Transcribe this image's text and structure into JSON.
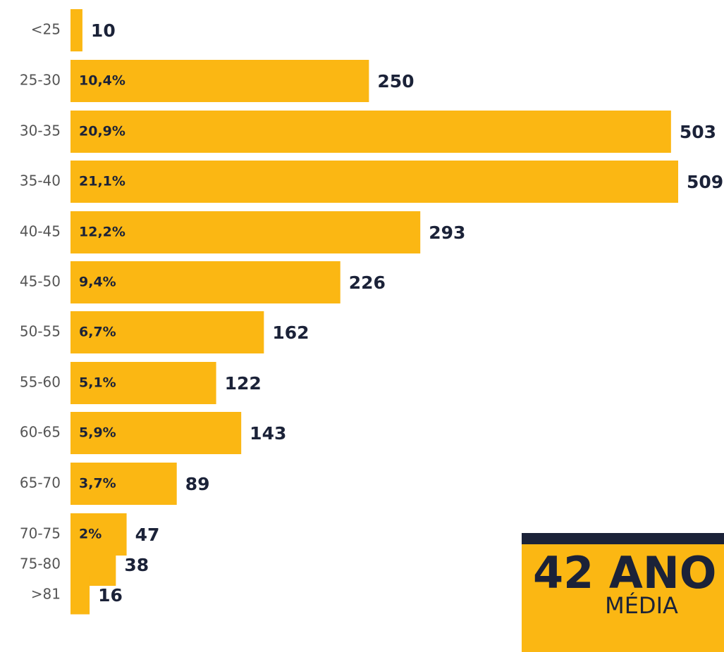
{
  "chart_data": {
    "type": "bar",
    "orientation": "horizontal",
    "categories": [
      "<25",
      "25-30",
      "30-35",
      "35-40",
      "40-45",
      "45-50",
      "50-55",
      "55-60",
      "60-65",
      "65-70",
      "70-75",
      "75-80",
      ">81"
    ],
    "values": [
      10,
      250,
      503,
      509,
      293,
      226,
      162,
      122,
      143,
      89,
      47,
      38,
      16
    ],
    "percent_labels": [
      null,
      "10,4%",
      "20,9%",
      "21,1%",
      "12,2%",
      "9,4%",
      "6,7%",
      "5,1%",
      "5,9%",
      "3,7%",
      "2%",
      null,
      null
    ],
    "color": "#FBB713"
  },
  "summary": {
    "value": "42 ANO",
    "label": "MÉDIA"
  }
}
